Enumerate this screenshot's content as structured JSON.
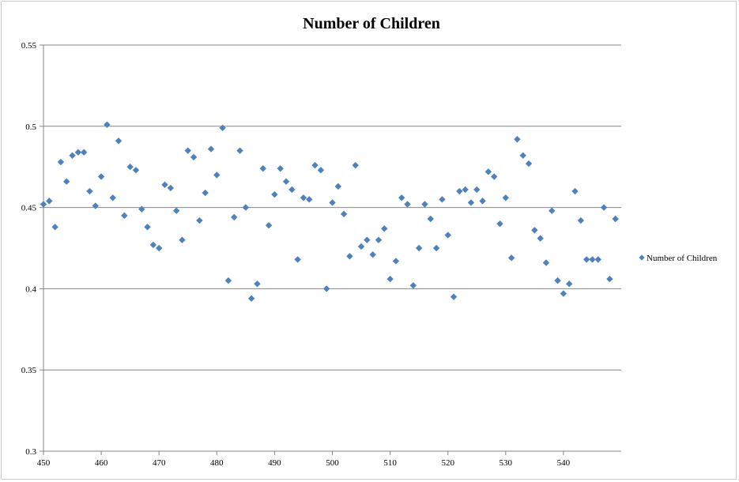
{
  "chart_data": {
    "type": "scatter",
    "title": "Number of Children",
    "xlabel": "",
    "ylabel": "",
    "xlim": [
      450,
      550
    ],
    "ylim": [
      0.3,
      0.55
    ],
    "x_ticks": [
      450,
      460,
      470,
      480,
      490,
      500,
      510,
      520,
      530,
      540
    ],
    "y_ticks": [
      0.3,
      0.35,
      0.4,
      0.45,
      0.5,
      0.55
    ],
    "x_tick_labels": [
      "450",
      "460",
      "470",
      "480",
      "490",
      "500",
      "510",
      "520",
      "530",
      "540"
    ],
    "y_tick_labels": [
      "0.3",
      "0.35",
      "0.4",
      "0.45",
      "0.5",
      "0.55"
    ],
    "grid": "horizontal",
    "legend_position": "right",
    "series": [
      {
        "name": "Number of Children",
        "color": "#4f81bd",
        "marker": "diamond",
        "x": [
          450,
          451,
          452,
          453,
          454,
          455,
          456,
          457,
          458,
          459,
          460,
          461,
          462,
          463,
          464,
          465,
          466,
          467,
          468,
          469,
          470,
          471,
          472,
          473,
          474,
          475,
          476,
          477,
          478,
          479,
          480,
          481,
          482,
          483,
          484,
          485,
          486,
          487,
          488,
          489,
          490,
          491,
          492,
          493,
          494,
          495,
          496,
          497,
          498,
          499,
          500,
          501,
          502,
          503,
          504,
          505,
          506,
          507,
          508,
          509,
          510,
          511,
          512,
          513,
          514,
          515,
          516,
          517,
          518,
          519,
          520,
          521,
          522,
          523,
          524,
          525,
          526,
          527,
          528,
          529,
          530,
          531,
          532,
          533,
          534,
          535,
          536,
          537,
          538,
          539,
          540,
          541,
          542,
          543,
          544,
          545,
          546,
          547,
          548,
          549
        ],
        "y": [
          0.452,
          0.454,
          0.438,
          0.478,
          0.466,
          0.482,
          0.484,
          0.484,
          0.46,
          0.451,
          0.469,
          0.501,
          0.456,
          0.491,
          0.445,
          0.475,
          0.473,
          0.449,
          0.438,
          0.427,
          0.425,
          0.464,
          0.462,
          0.448,
          0.43,
          0.485,
          0.481,
          0.442,
          0.459,
          0.486,
          0.47,
          0.499,
          0.405,
          0.444,
          0.485,
          0.45,
          0.394,
          0.403,
          0.474,
          0.439,
          0.458,
          0.474,
          0.466,
          0.461,
          0.418,
          0.456,
          0.455,
          0.476,
          0.473,
          0.4,
          0.453,
          0.463,
          0.446,
          0.42,
          0.476,
          0.426,
          0.43,
          0.421,
          0.43,
          0.437,
          0.406,
          0.417,
          0.456,
          0.452,
          0.402,
          0.425,
          0.452,
          0.443,
          0.425,
          0.455,
          0.433,
          0.395,
          0.46,
          0.461,
          0.453,
          0.461,
          0.454,
          0.472,
          0.469,
          0.44,
          0.456,
          0.419,
          0.492,
          0.482,
          0.477,
          0.436,
          0.431,
          0.416,
          0.448,
          0.405,
          0.397,
          0.403,
          0.46,
          0.442,
          0.418,
          0.418,
          0.418,
          0.45,
          0.406,
          0.443
        ]
      }
    ]
  }
}
